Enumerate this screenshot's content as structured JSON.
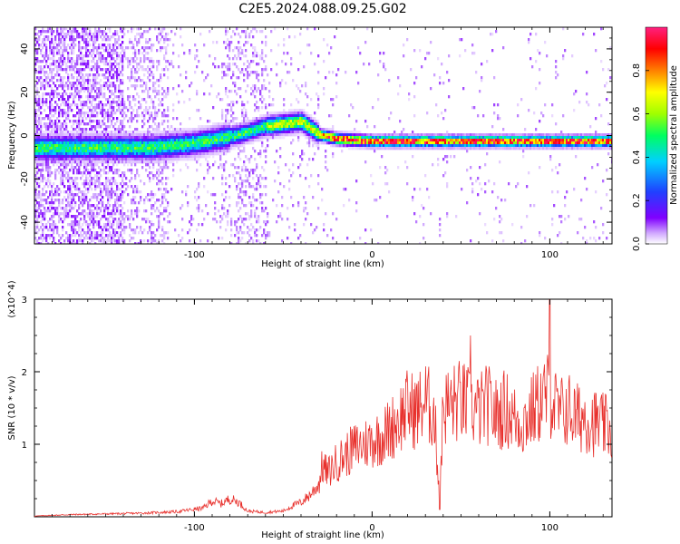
{
  "title": "C2E5.2024.088.09.25.G02",
  "colors": {
    "snr_line": "#e8302c",
    "frame": "#000000"
  },
  "chart_data": [
    {
      "type": "heatmap",
      "xlabel": "Height of straight line (km)",
      "ylabel": "Frequency (Hz)",
      "xlim": [
        -190,
        135
      ],
      "ylim": [
        -50,
        50
      ],
      "x_ticks": [
        -100,
        0,
        100
      ],
      "x_tick_labels": [
        "-100",
        "0",
        "100"
      ],
      "y_ticks": [
        -40,
        -20,
        0,
        20,
        40
      ],
      "y_tick_labels": [
        "-40",
        "-20",
        "0",
        "20",
        "40"
      ],
      "colorbar": {
        "label": "Normalized spectral amplitude",
        "range": [
          0.0,
          1.0
        ],
        "ticks": [
          0.0,
          0.2,
          0.4,
          0.6,
          0.8
        ],
        "tick_labels": [
          "0.0",
          "0.2",
          "0.4",
          "0.6",
          "0.8"
        ],
        "colormap": [
          "#ffffff",
          "#d0a8ff",
          "#8000ff",
          "#2040ff",
          "#00d0ff",
          "#00ff60",
          "#a0ff00",
          "#ffff00",
          "#ff8000",
          "#ff0000",
          "#ff2080"
        ]
      },
      "ridge_frequency": {
        "x": [
          -175,
          -150,
          -125,
          -100,
          -75,
          -60,
          -50,
          -40,
          -35,
          -30,
          -20,
          0,
          50,
          100,
          135
        ],
        "y": [
          -5,
          -5,
          -5,
          -3,
          1,
          5,
          6,
          7,
          4,
          1,
          -1,
          -2,
          -2,
          -2,
          -2
        ]
      }
    },
    {
      "type": "line",
      "xlabel": "Height of straight line (km)",
      "ylabel": "SNR (10 * v/v)",
      "y_multiplier": "(x10^4)",
      "xlim": [
        -190,
        135
      ],
      "ylim": [
        0,
        3
      ],
      "x_ticks": [
        -100,
        0,
        100
      ],
      "x_tick_labels": [
        "-100",
        "0",
        "100"
      ],
      "y_ticks": [
        1,
        2,
        3
      ],
      "y_tick_labels": [
        "1",
        "2",
        "3"
      ],
      "series": [
        {
          "x": [
            -190,
            -170,
            -150,
            -130,
            -110,
            -95,
            -90,
            -85,
            -80,
            -75,
            -70,
            -60,
            -50,
            -45,
            -40,
            -35,
            -30,
            -28,
            -25,
            -20,
            -15,
            -10,
            -5,
            0,
            5,
            10,
            15,
            20,
            25,
            30,
            35,
            38,
            40,
            45,
            50,
            55,
            60,
            65,
            70,
            75,
            80,
            85,
            90,
            95,
            100,
            105,
            110,
            115,
            120,
            125,
            130,
            135
          ],
          "y": [
            0.01,
            0.03,
            0.04,
            0.05,
            0.07,
            0.12,
            0.22,
            0.18,
            0.25,
            0.2,
            0.08,
            0.06,
            0.08,
            0.15,
            0.2,
            0.3,
            0.45,
            0.7,
            0.6,
            0.75,
            0.85,
            0.95,
            1.0,
            1.05,
            1.1,
            1.2,
            1.35,
            1.5,
            1.45,
            1.6,
            1.4,
            0.3,
            1.5,
            1.55,
            1.6,
            1.5,
            1.45,
            1.55,
            1.4,
            1.5,
            1.35,
            1.3,
            1.45,
            1.6,
            1.7,
            1.4,
            1.5,
            1.35,
            1.4,
            1.3,
            1.25,
            1.2
          ]
        }
      ]
    }
  ]
}
